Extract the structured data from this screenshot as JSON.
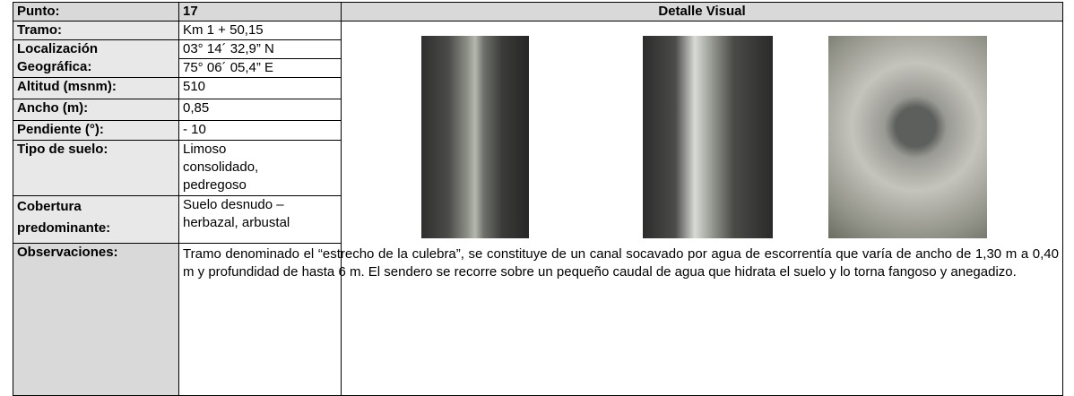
{
  "header": {
    "label": "Punto:",
    "value": "17",
    "visual_title": "Detalle Visual"
  },
  "rows": [
    {
      "label": "Tramo:",
      "value": "Km 1 + 50,15"
    },
    {
      "label": "Localización Geográfica:",
      "values": [
        "03° 14´ 32,9” N",
        "75° 06´ 05,4” E"
      ]
    },
    {
      "label": "Altitud (msnm):",
      "value": "510"
    },
    {
      "label": "Ancho (m):",
      "value": "0,85"
    },
    {
      "label": "Pendiente (°):",
      "value": "- 10"
    },
    {
      "label": "Tipo de suelo:",
      "lines": [
        "Limoso",
        "consolidado,",
        "pedregoso"
      ]
    },
    {
      "label": "Cobertura predominante:",
      "lines": [
        "Suelo desnudo –",
        "herbazal, arbustal"
      ]
    }
  ],
  "observations": {
    "label": "Observaciones:",
    "text": "Tramo denominado el “estrecho de la culebra”, se constituye de un canal socavado por agua de escorrentía que varía de ancho de 1,30 m a 0,40 m y profundidad de hasta 6 m. El sendero se recorre sobre un pequeño caudal de agua que hidrata el suelo y lo torna fangoso y anegadizo."
  }
}
